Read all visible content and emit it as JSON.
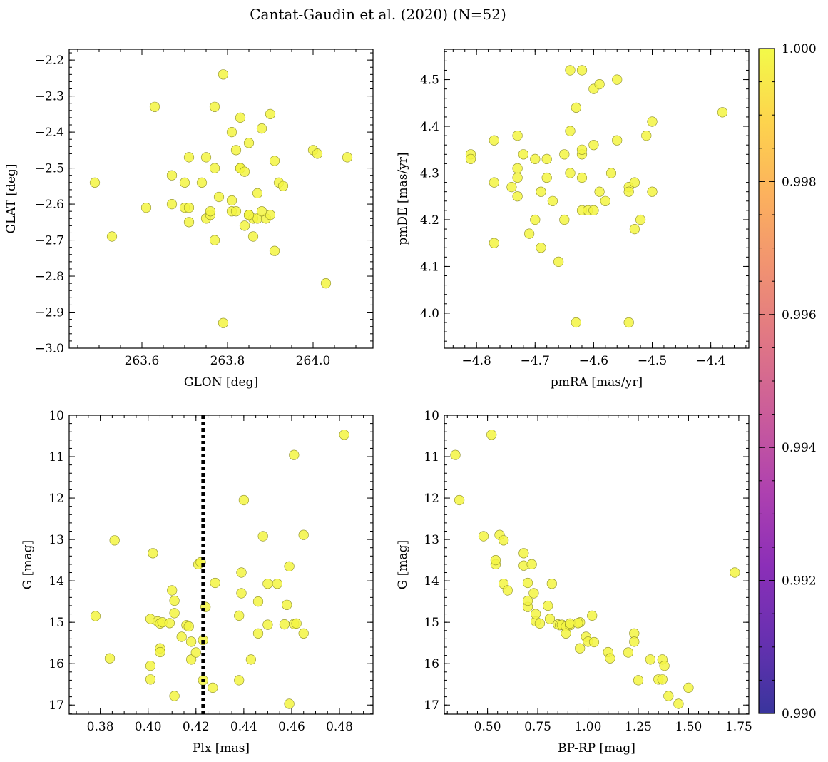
{
  "figure": {
    "title": "Cantat-Gaudin et al. (2020) (N=52)"
  },
  "colors": {
    "point_fill": "#f3f542",
    "point_edge": "#8e8f2a",
    "vline": "#000000",
    "colormap": [
      "#0d0887",
      "#46039f",
      "#7201a8",
      "#9c179e",
      "#bd3786",
      "#d8576b",
      "#ed7953",
      "#fb9f3a",
      "#fdca26",
      "#f0f921"
    ]
  },
  "colorbar": {
    "min": 0.99,
    "max": 1.0,
    "tick_values": [
      0.99,
      0.992,
      0.994,
      0.996,
      0.998,
      1.0
    ],
    "tick_labels": [
      "0.990",
      "0.992",
      "0.994",
      "0.996",
      "0.998",
      "1.000"
    ]
  },
  "chart_data": [
    {
      "id": "sky",
      "type": "scatter",
      "xlabel": "GLON [deg]",
      "ylabel": "GLAT [deg]",
      "xlim": [
        263.43,
        264.14
      ],
      "ylim": [
        -3.0,
        -2.17
      ],
      "invert_y": false,
      "xticks": [
        263.6,
        263.8,
        264.0
      ],
      "xtick_labels": [
        "263.6",
        "263.8",
        "264.0"
      ],
      "yticks": [
        -3.0,
        -2.9,
        -2.8,
        -2.7,
        -2.6,
        -2.5,
        -2.4,
        -2.3,
        -2.2
      ],
      "ytick_labels": [
        "−3.0",
        "−2.9",
        "−2.8",
        "−2.7",
        "−2.6",
        "−2.5",
        "−2.4",
        "−2.3",
        "−2.2"
      ],
      "x_minor_step": 0.05,
      "y_minor_step": 0.02,
      "points": [
        [
          263.49,
          -2.54
        ],
        [
          263.53,
          -2.69
        ],
        [
          263.61,
          -2.61
        ],
        [
          263.63,
          -2.33
        ],
        [
          263.67,
          -2.52
        ],
        [
          263.67,
          -2.6
        ],
        [
          263.7,
          -2.61
        ],
        [
          263.7,
          -2.54
        ],
        [
          263.71,
          -2.65
        ],
        [
          263.71,
          -2.61
        ],
        [
          263.71,
          -2.47
        ],
        [
          263.74,
          -2.54
        ],
        [
          263.75,
          -2.64
        ],
        [
          263.75,
          -2.47
        ],
        [
          263.76,
          -2.63
        ],
        [
          263.76,
          -2.62
        ],
        [
          263.77,
          -2.7
        ],
        [
          263.77,
          -2.5
        ],
        [
          263.77,
          -2.33
        ],
        [
          263.78,
          -2.58
        ],
        [
          263.79,
          -2.24
        ],
        [
          263.79,
          -2.93
        ],
        [
          263.81,
          -2.4
        ],
        [
          263.81,
          -2.59
        ],
        [
          263.81,
          -2.62
        ],
        [
          263.82,
          -2.45
        ],
        [
          263.82,
          -2.62
        ],
        [
          263.83,
          -2.5
        ],
        [
          263.83,
          -2.5
        ],
        [
          263.83,
          -2.36
        ],
        [
          263.84,
          -2.51
        ],
        [
          263.84,
          -2.66
        ],
        [
          263.85,
          -2.43
        ],
        [
          263.85,
          -2.63
        ],
        [
          263.86,
          -2.69
        ],
        [
          263.86,
          -2.64
        ],
        [
          263.87,
          -2.64
        ],
        [
          263.87,
          -2.57
        ],
        [
          263.88,
          -2.39
        ],
        [
          263.89,
          -2.64
        ],
        [
          263.9,
          -2.63
        ],
        [
          263.9,
          -2.35
        ],
        [
          263.91,
          -2.73
        ],
        [
          263.91,
          -2.48
        ],
        [
          263.92,
          -2.54
        ],
        [
          263.93,
          -2.55
        ],
        [
          264.0,
          -2.45
        ],
        [
          264.01,
          -2.46
        ],
        [
          264.03,
          -2.82
        ],
        [
          264.08,
          -2.47
        ],
        [
          263.85,
          -2.63
        ],
        [
          263.88,
          -2.62
        ]
      ]
    },
    {
      "id": "pm",
      "type": "scatter",
      "xlabel": "pmRA [mas/yr]",
      "ylabel": "pmDE [mas/yr]",
      "xlim": [
        -4.855,
        -4.335
      ],
      "ylim": [
        3.925,
        4.565
      ],
      "invert_y": false,
      "xticks": [
        -4.8,
        -4.7,
        -4.6,
        -4.5,
        -4.4
      ],
      "xtick_labels": [
        "−4.8",
        "−4.7",
        "−4.6",
        "−4.5",
        "−4.4"
      ],
      "yticks": [
        4.0,
        4.1,
        4.2,
        4.3,
        4.4,
        4.5
      ],
      "ytick_labels": [
        "4.0",
        "4.1",
        "4.2",
        "4.3",
        "4.4",
        "4.5"
      ],
      "x_minor_step": 0.02,
      "y_minor_step": 0.02,
      "points": [
        [
          -4.81,
          4.34
        ],
        [
          -4.81,
          4.33
        ],
        [
          -4.77,
          4.37
        ],
        [
          -4.77,
          4.28
        ],
        [
          -4.77,
          4.15
        ],
        [
          -4.74,
          4.27
        ],
        [
          -4.73,
          4.38
        ],
        [
          -4.73,
          4.31
        ],
        [
          -4.73,
          4.29
        ],
        [
          -4.73,
          4.25
        ],
        [
          -4.72,
          4.34
        ],
        [
          -4.71,
          4.17
        ],
        [
          -4.7,
          4.33
        ],
        [
          -4.7,
          4.2
        ],
        [
          -4.69,
          4.26
        ],
        [
          -4.69,
          4.14
        ],
        [
          -4.68,
          4.29
        ],
        [
          -4.68,
          4.33
        ],
        [
          -4.67,
          4.24
        ],
        [
          -4.66,
          4.11
        ],
        [
          -4.65,
          4.34
        ],
        [
          -4.65,
          4.2
        ],
        [
          -4.64,
          4.52
        ],
        [
          -4.64,
          4.39
        ],
        [
          -4.64,
          4.3
        ],
        [
          -4.63,
          4.44
        ],
        [
          -4.63,
          3.98
        ],
        [
          -4.62,
          4.22
        ],
        [
          -4.62,
          4.29
        ],
        [
          -4.62,
          4.34
        ],
        [
          -4.62,
          4.52
        ],
        [
          -4.62,
          4.35
        ],
        [
          -4.61,
          4.22
        ],
        [
          -4.6,
          4.48
        ],
        [
          -4.6,
          4.22
        ],
        [
          -4.6,
          4.36
        ],
        [
          -4.59,
          4.49
        ],
        [
          -4.59,
          4.26
        ],
        [
          -4.58,
          4.24
        ],
        [
          -4.57,
          4.3
        ],
        [
          -4.56,
          4.5
        ],
        [
          -4.56,
          4.37
        ],
        [
          -4.54,
          4.27
        ],
        [
          -4.54,
          4.26
        ],
        [
          -4.54,
          3.98
        ],
        [
          -4.53,
          4.28
        ],
        [
          -4.53,
          4.18
        ],
        [
          -4.52,
          4.2
        ],
        [
          -4.51,
          4.38
        ],
        [
          -4.5,
          4.41
        ],
        [
          -4.5,
          4.26
        ],
        [
          -4.38,
          4.43
        ]
      ]
    },
    {
      "id": "plx",
      "type": "scatter",
      "xlabel": "Plx [mas]",
      "ylabel": "G [mag]",
      "xlim": [
        0.367,
        0.494
      ],
      "ylim": [
        10.0,
        17.22
      ],
      "invert_y": true,
      "xticks": [
        0.38,
        0.4,
        0.42,
        0.44,
        0.46,
        0.48
      ],
      "xtick_labels": [
        "0.38",
        "0.40",
        "0.42",
        "0.44",
        "0.46",
        "0.48"
      ],
      "yticks": [
        10,
        11,
        12,
        13,
        14,
        15,
        16,
        17
      ],
      "ytick_labels": [
        "10",
        "11",
        "12",
        "13",
        "14",
        "15",
        "16",
        "17"
      ],
      "x_minor_step": 0.005,
      "y_minor_step": 0.2,
      "vline": 0.423,
      "points": [
        [
          0.378,
          14.85
        ],
        [
          0.384,
          15.87
        ],
        [
          0.386,
          13.02
        ],
        [
          0.401,
          16.05
        ],
        [
          0.401,
          16.38
        ],
        [
          0.401,
          14.92
        ],
        [
          0.402,
          13.33
        ],
        [
          0.404,
          14.98
        ],
        [
          0.405,
          15.63
        ],
        [
          0.405,
          15.72
        ],
        [
          0.405,
          15.03
        ],
        [
          0.406,
          15.0
        ],
        [
          0.41,
          14.23
        ],
        [
          0.411,
          16.78
        ],
        [
          0.411,
          14.48
        ],
        [
          0.411,
          14.78
        ],
        [
          0.414,
          15.35
        ],
        [
          0.416,
          15.07
        ],
        [
          0.417,
          15.1
        ],
        [
          0.418,
          15.9
        ],
        [
          0.418,
          15.47
        ],
        [
          0.42,
          15.73
        ],
        [
          0.421,
          13.6
        ],
        [
          0.422,
          13.55
        ],
        [
          0.423,
          16.4
        ],
        [
          0.423,
          15.43
        ],
        [
          0.424,
          14.63
        ],
        [
          0.427,
          16.58
        ],
        [
          0.428,
          14.05
        ],
        [
          0.438,
          14.84
        ],
        [
          0.438,
          16.4
        ],
        [
          0.439,
          14.3
        ],
        [
          0.439,
          13.8
        ],
        [
          0.44,
          12.05
        ],
        [
          0.443,
          15.9
        ],
        [
          0.446,
          15.27
        ],
        [
          0.448,
          12.92
        ],
        [
          0.45,
          15.06
        ],
        [
          0.45,
          14.07
        ],
        [
          0.454,
          14.07
        ],
        [
          0.457,
          15.05
        ],
        [
          0.458,
          14.58
        ],
        [
          0.459,
          16.97
        ],
        [
          0.459,
          13.65
        ],
        [
          0.461,
          15.04
        ],
        [
          0.461,
          10.96
        ],
        [
          0.462,
          15.03
        ],
        [
          0.465,
          12.89
        ],
        [
          0.465,
          15.27
        ],
        [
          0.482,
          10.47
        ],
        [
          0.409,
          15.02
        ],
        [
          0.446,
          14.5
        ]
      ]
    },
    {
      "id": "cmd",
      "type": "scatter",
      "xlabel": "BP-RP [mag]",
      "ylabel": "G [mag]",
      "xlim": [
        0.285,
        1.8
      ],
      "ylim": [
        10.0,
        17.22
      ],
      "invert_y": true,
      "xticks": [
        0.5,
        0.75,
        1.0,
        1.25,
        1.5,
        1.75
      ],
      "xtick_labels": [
        "0.50",
        "0.75",
        "1.00",
        "1.25",
        "1.50",
        "1.75"
      ],
      "yticks": [
        10,
        11,
        12,
        13,
        14,
        15,
        16,
        17
      ],
      "ytick_labels": [
        "10",
        "11",
        "12",
        "13",
        "14",
        "15",
        "16",
        "17"
      ],
      "x_minor_step": 0.05,
      "y_minor_step": 0.2,
      "points": [
        [
          0.34,
          10.96
        ],
        [
          0.36,
          12.05
        ],
        [
          0.48,
          12.92
        ],
        [
          0.52,
          10.47
        ],
        [
          0.54,
          13.6
        ],
        [
          0.54,
          13.5
        ],
        [
          0.56,
          12.89
        ],
        [
          0.58,
          14.07
        ],
        [
          0.58,
          13.02
        ],
        [
          0.6,
          14.23
        ],
        [
          0.68,
          13.33
        ],
        [
          0.68,
          13.63
        ],
        [
          0.7,
          14.63
        ],
        [
          0.7,
          14.48
        ],
        [
          0.7,
          14.05
        ],
        [
          0.72,
          13.6
        ],
        [
          0.73,
          14.3
        ],
        [
          0.74,
          14.98
        ],
        [
          0.74,
          14.8
        ],
        [
          0.76,
          15.03
        ],
        [
          0.8,
          14.6
        ],
        [
          0.81,
          14.92
        ],
        [
          0.82,
          14.07
        ],
        [
          0.85,
          15.05
        ],
        [
          0.86,
          15.07
        ],
        [
          0.87,
          15.06
        ],
        [
          0.89,
          15.1
        ],
        [
          0.89,
          15.27
        ],
        [
          0.91,
          15.07
        ],
        [
          0.96,
          15.63
        ],
        [
          0.96,
          15.0
        ],
        [
          0.99,
          15.35
        ],
        [
          1.0,
          15.47
        ],
        [
          1.02,
          14.84
        ],
        [
          1.03,
          15.48
        ],
        [
          1.1,
          15.72
        ],
        [
          1.11,
          15.87
        ],
        [
          1.2,
          15.73
        ],
        [
          1.23,
          15.27
        ],
        [
          1.23,
          15.47
        ],
        [
          1.25,
          16.4
        ],
        [
          1.31,
          15.9
        ],
        [
          1.35,
          16.38
        ],
        [
          1.37,
          15.9
        ],
        [
          1.37,
          16.38
        ],
        [
          1.38,
          16.05
        ],
        [
          1.4,
          16.78
        ],
        [
          1.45,
          16.97
        ],
        [
          1.5,
          16.58
        ],
        [
          1.73,
          13.8
        ],
        [
          0.91,
          15.03
        ],
        [
          0.95,
          15.02
        ]
      ]
    }
  ]
}
